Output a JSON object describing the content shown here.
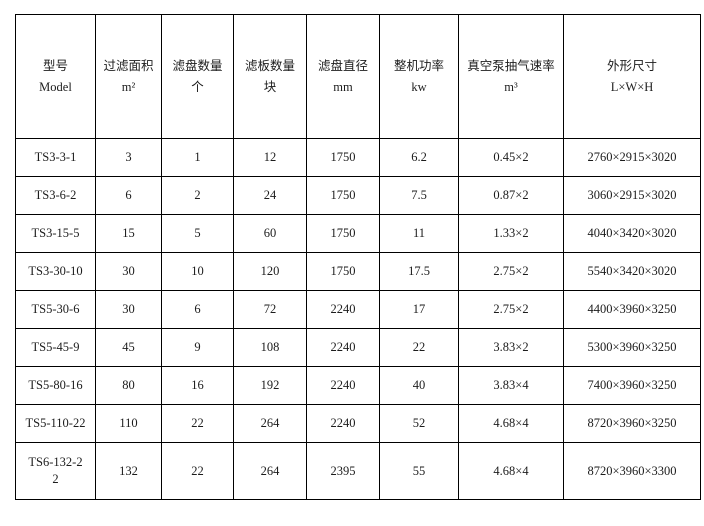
{
  "colors": {
    "background": "#ffffff",
    "border": "#000000",
    "text": "#1c1c1c"
  },
  "table": {
    "columns": [
      {
        "line1": "型号",
        "line2": "Model"
      },
      {
        "line1": "过滤面积",
        "line2": "m²"
      },
      {
        "line1": "滤盘数量",
        "line2": "个"
      },
      {
        "line1": "滤板数量",
        "line2": "块"
      },
      {
        "line1": "滤盘直径",
        "line2": "mm"
      },
      {
        "line1": "整机功率",
        "line2": "kw"
      },
      {
        "line1": "真空泵抽气速率",
        "line2": "m³"
      },
      {
        "line1": "外形尺寸",
        "line2": "L×W×H"
      }
    ],
    "rows": [
      [
        "TS3-3-1",
        "3",
        "1",
        "12",
        "1750",
        "6.2",
        "0.45×2",
        "2760×2915×3020"
      ],
      [
        "TS3-6-2",
        "6",
        "2",
        "24",
        "1750",
        "7.5",
        "0.87×2",
        "3060×2915×3020"
      ],
      [
        "TS3-15-5",
        "15",
        "5",
        "60",
        "1750",
        "11",
        "1.33×2",
        "4040×3420×3020"
      ],
      [
        "TS3-30-10",
        "30",
        "10",
        "120",
        "1750",
        "17.5",
        "2.75×2",
        "5540×3420×3020"
      ],
      [
        "TS5-30-6",
        "30",
        "6",
        "72",
        "2240",
        "17",
        "2.75×2",
        "4400×3960×3250"
      ],
      [
        "TS5-45-9",
        "45",
        "9",
        "108",
        "2240",
        "22",
        "3.83×2",
        "5300×3960×3250"
      ],
      [
        "TS5-80-16",
        "80",
        "16",
        "192",
        "2240",
        "40",
        "3.83×4",
        "7400×3960×3250"
      ],
      [
        "TS5-110-22",
        "110",
        "22",
        "264",
        "2240",
        "52",
        "4.68×4",
        "8720×3960×3250"
      ],
      [
        "TS6-132-22",
        "132",
        "22",
        "264",
        "2395",
        "55",
        "4.68×4",
        "8720×3960×3300"
      ]
    ]
  }
}
